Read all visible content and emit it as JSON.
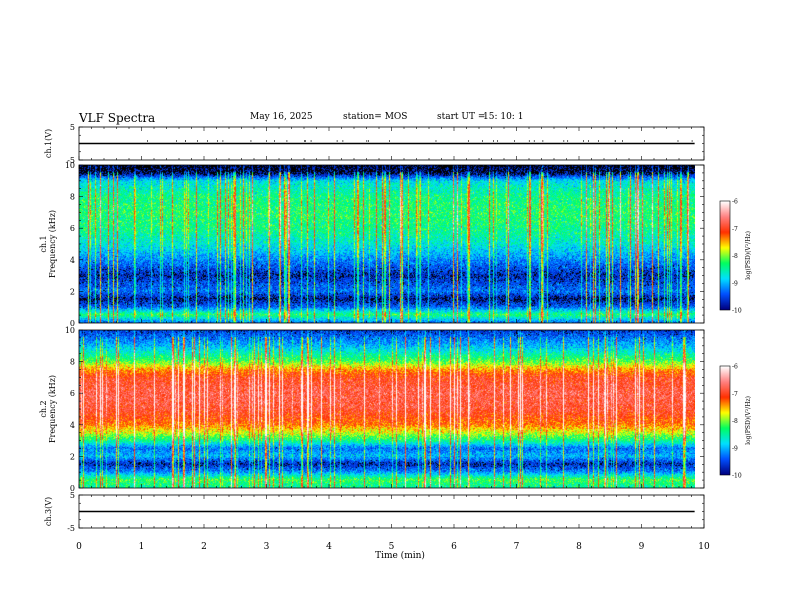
{
  "header": {
    "title": "VLF Spectra",
    "date": "May 16, 2025",
    "station": "station= MOS",
    "start_label": "start  UT  =",
    "start_value": "15: 10: 1"
  },
  "chart_data": [
    {
      "type": "line",
      "panel": "ch1-waveform",
      "ylabel": "ch.1(V)",
      "ylim": [
        -5,
        5
      ],
      "yticks": [
        5,
        -5
      ],
      "xlim": [
        0,
        10
      ],
      "series": [
        {
          "x": [
            0,
            9.85
          ],
          "y": [
            0,
            0
          ]
        }
      ]
    },
    {
      "type": "heatmap",
      "panel": "ch1-spectrogram",
      "ylabel": "ch.1\nFrequency (kHz)",
      "ylim": [
        0,
        10
      ],
      "yticks": [
        0,
        2,
        4,
        6,
        8,
        10
      ],
      "xlim": [
        0,
        10
      ],
      "data_extent_min": 9.85,
      "profile_kHz": [
        0,
        0.5,
        1.0,
        1.5,
        2.0,
        3.0,
        4.0,
        5.0,
        6.0,
        7.0,
        8.0,
        9.0,
        9.5,
        10.0
      ],
      "profile_log_psd": [
        -9.3,
        -8.3,
        -9.4,
        -9.8,
        -9.3,
        -9.7,
        -9.2,
        -8.7,
        -8.4,
        -8.3,
        -8.4,
        -8.8,
        -9.9,
        -10.0
      ],
      "colorbar": {
        "label": "log(PSD)(V²/Hz)",
        "min": -10,
        "max": -6,
        "ticks": [
          -6,
          -7,
          -8,
          -9,
          -10
        ]
      }
    },
    {
      "type": "heatmap",
      "panel": "ch2-spectrogram",
      "ylabel": "ch.2\nFrequency (kHz)",
      "ylim": [
        0,
        10
      ],
      "yticks": [
        0,
        2,
        4,
        6,
        8,
        10
      ],
      "xlim": [
        0,
        10
      ],
      "data_extent_min": 9.85,
      "profile_kHz": [
        0,
        0.5,
        1.0,
        1.5,
        2.0,
        2.5,
        3.0,
        3.5,
        4.0,
        5.0,
        6.0,
        7.0,
        7.5,
        8.0,
        9.0,
        10.0
      ],
      "profile_log_psd": [
        -8.5,
        -8.2,
        -9.2,
        -9.7,
        -9.0,
        -9.3,
        -8.4,
        -7.8,
        -7.3,
        -6.9,
        -6.8,
        -7.0,
        -7.4,
        -8.1,
        -9.0,
        -9.6
      ],
      "colorbar": {
        "label": "log(PSD)(V²/Hz)",
        "min": -10,
        "max": -6,
        "ticks": [
          -6,
          -7,
          -8,
          -9,
          -10
        ]
      }
    },
    {
      "type": "line",
      "panel": "ch3-waveform",
      "ylabel": "ch.3(V)",
      "ylim": [
        -5,
        5
      ],
      "yticks": [
        5,
        -5
      ],
      "xlim": [
        0,
        10
      ],
      "series": [
        {
          "x": [
            0,
            9.85
          ],
          "y": [
            0,
            0
          ]
        }
      ]
    }
  ],
  "x_axis": {
    "label": "Time (min)",
    "ticks": [
      "0",
      "1",
      "2",
      "3",
      "4",
      "5",
      "6",
      "7",
      "8",
      "9",
      "10"
    ]
  },
  "colors": {
    "colormap": [
      "#000080",
      "#0050ff",
      "#00e0ff",
      "#00ff60",
      "#ffff00",
      "#ff3000",
      "#ff8080",
      "#ffffff"
    ]
  }
}
